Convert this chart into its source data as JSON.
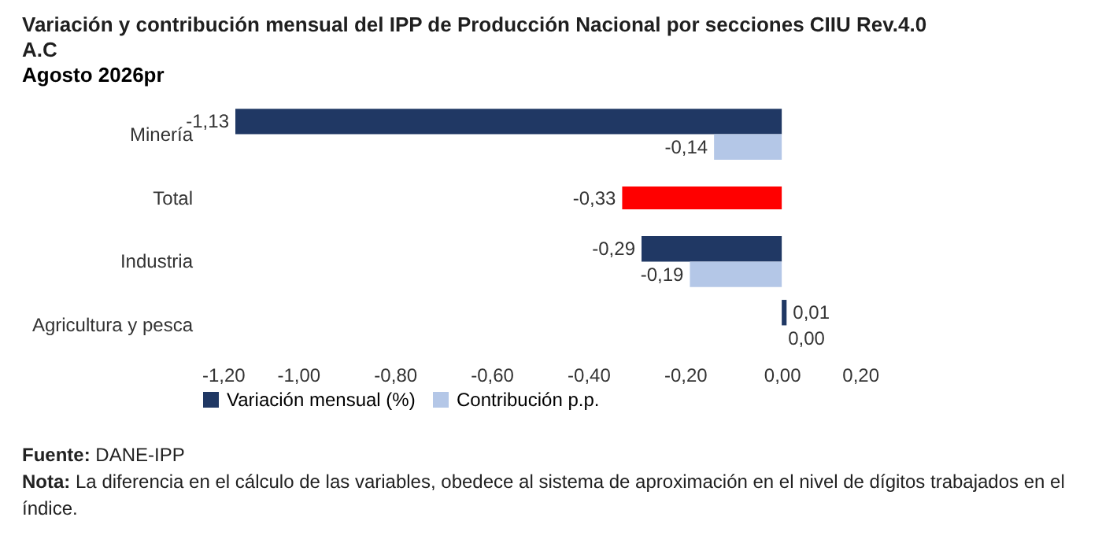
{
  "chart_data": {
    "type": "bar",
    "orientation": "horizontal",
    "title": "Variación y contribución mensual del IPP de Producción Nacional por secciones CIIU Rev.4.0 A.C",
    "subtitle": "Agosto 2026pr",
    "categories": [
      "Minería",
      "Total",
      "Industria",
      "Agricultura y pesca"
    ],
    "series": [
      {
        "name": "Variación mensual (%)",
        "color": "#203864",
        "colors": [
          "#203864",
          "#ff0000",
          "#203864",
          "#203864"
        ],
        "values": [
          -1.13,
          -0.33,
          -0.29,
          0.01
        ],
        "value_labels": [
          "-1,13",
          "-0,33",
          "-0,29",
          "0,01"
        ]
      },
      {
        "name": "Contribución p.p.",
        "color": "#b4c7e7",
        "values": [
          -0.14,
          null,
          -0.19,
          0.0
        ],
        "value_labels": [
          "-0,14",
          null,
          "-0,19",
          "0,00"
        ]
      }
    ],
    "xlim": [
      -1.2,
      0.2
    ],
    "xticks": [
      {
        "value": -1.2,
        "label": "-1,20"
      },
      {
        "value": -1.0,
        "label": "-1,00"
      },
      {
        "value": -0.8,
        "label": "-0,80"
      },
      {
        "value": -0.6,
        "label": "-0,60"
      },
      {
        "value": -0.4,
        "label": "-0,40"
      },
      {
        "value": -0.2,
        "label": "-0,20"
      },
      {
        "value": 0,
        "label": "0,00"
      },
      {
        "value": 0.2,
        "label": "0,20"
      }
    ],
    "grid": false,
    "legend": "bottom",
    "annotations": [
      "Fuente: DANE-IPP",
      "Nota: La diferencia en el cálculo de las variables, obedece al sistema de aproximación en el nivel de dígitos trabajados en el índice."
    ]
  }
}
